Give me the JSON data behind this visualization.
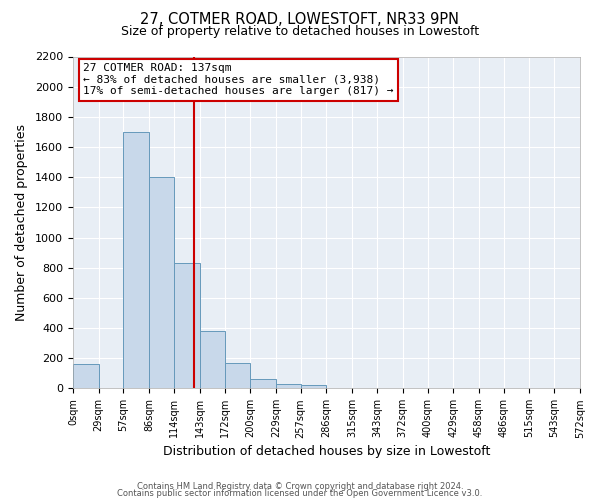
{
  "title": "27, COTMER ROAD, LOWESTOFT, NR33 9PN",
  "subtitle": "Size of property relative to detached houses in Lowestoft",
  "xlabel": "Distribution of detached houses by size in Lowestoft",
  "ylabel": "Number of detached properties",
  "bar_color": "#c8d8ea",
  "bar_edge_color": "#6699bb",
  "bin_edges": [
    0,
    29,
    57,
    86,
    114,
    143,
    172,
    200,
    229,
    257,
    286,
    315,
    343,
    372,
    400,
    429,
    458,
    486,
    515,
    543,
    572
  ],
  "bar_heights": [
    160,
    0,
    1700,
    1400,
    830,
    380,
    165,
    65,
    30,
    25,
    0,
    0,
    0,
    0,
    0,
    0,
    0,
    0,
    0,
    0
  ],
  "tick_labels": [
    "0sqm",
    "29sqm",
    "57sqm",
    "86sqm",
    "114sqm",
    "143sqm",
    "172sqm",
    "200sqm",
    "229sqm",
    "257sqm",
    "286sqm",
    "315sqm",
    "343sqm",
    "372sqm",
    "400sqm",
    "429sqm",
    "458sqm",
    "486sqm",
    "515sqm",
    "543sqm",
    "572sqm"
  ],
  "ylim": [
    0,
    2200
  ],
  "yticks": [
    0,
    200,
    400,
    600,
    800,
    1000,
    1200,
    1400,
    1600,
    1800,
    2000,
    2200
  ],
  "property_line_x": 137,
  "property_line_color": "#cc0000",
  "annotation_title": "27 COTMER ROAD: 137sqm",
  "annotation_line1": "← 83% of detached houses are smaller (3,938)",
  "annotation_line2": "17% of semi-detached houses are larger (817) →",
  "footer1": "Contains HM Land Registry data © Crown copyright and database right 2024.",
  "footer2": "Contains public sector information licensed under the Open Government Licence v3.0.",
  "plot_bg_color": "#e8eef5",
  "background_color": "#ffffff",
  "grid_color": "#ffffff"
}
